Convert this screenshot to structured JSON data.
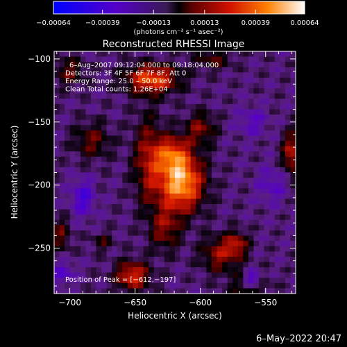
{
  "chart_data": {
    "type": "heatmap",
    "title": "Reconstructed RHESSI Image",
    "xlabel": "Heliocentric X (arcsec)",
    "ylabel": "Heliocentric Y (arcsec)",
    "xlim": [
      -712,
      -527
    ],
    "ylim": [
      -286,
      -94
    ],
    "x_ticks": [
      -700,
      -650,
      -600,
      -550
    ],
    "x_tick_labels": [
      "−700",
      "−650",
      "−600",
      "−550"
    ],
    "y_ticks": [
      -100,
      -150,
      -200,
      -250
    ],
    "y_tick_labels": [
      "−100",
      "−150",
      "−200",
      "−250"
    ],
    "colorbar": {
      "min": -0.00064,
      "max": 0.00064,
      "tick_values": [
        -0.00064,
        -0.00039,
        -0.00013,
        0.00013,
        0.00039,
        0.00064
      ],
      "tick_labels": [
        "−0.00064",
        "−0.00039",
        "−0.00013",
        "0.00013",
        "0.00039",
        "0.00064"
      ],
      "units": "(photons cm⁻² s⁻¹ asec⁻²)"
    },
    "annotations": [
      "6–Aug–2007 09:12:04.000 to 09:18:04.000",
      "Detectors: 3F 4F 5F 6F 7F 8F, Att 0",
      "Energy Range: 25.0 – 50.0 keV",
      "Clean     Total counts: 1.26E+04"
    ],
    "peak_label": "Position of Peak = [−612,−197]",
    "peak": [
      -612,
      -197
    ],
    "sources": [
      {
        "x": -615,
        "y": -198,
        "sx": 12,
        "sy": 16,
        "amp": 1.0
      },
      {
        "x": -622,
        "y": -175,
        "sx": 9,
        "sy": 10,
        "amp": 0.55
      },
      {
        "x": -640,
        "y": -180,
        "sx": 8,
        "sy": 25,
        "amp": 0.45
      },
      {
        "x": -637,
        "y": -116,
        "sx": 14,
        "sy": 8,
        "amp": 0.75
      },
      {
        "x": -627,
        "y": -235,
        "sx": 8,
        "sy": 12,
        "amp": 0.4
      },
      {
        "x": -600,
        "y": -155,
        "sx": 8,
        "sy": 9,
        "amp": 0.4
      },
      {
        "x": -652,
        "y": -272,
        "sx": 9,
        "sy": 8,
        "amp": 0.65
      },
      {
        "x": -585,
        "y": -255,
        "sx": 10,
        "sy": 10,
        "amp": 0.45
      },
      {
        "x": -572,
        "y": -247,
        "sx": 6,
        "sy": 7,
        "amp": 0.45
      },
      {
        "x": -562,
        "y": -280,
        "sx": 10,
        "sy": 8,
        "amp": 0.35
      },
      {
        "x": -530,
        "y": -175,
        "sx": 5,
        "sy": 12,
        "amp": 0.55
      },
      {
        "x": -683,
        "y": -165,
        "sx": 10,
        "sy": 10,
        "amp": 0.35
      },
      {
        "x": -700,
        "y": -110,
        "sx": 8,
        "sy": 8,
        "amp": 0.35
      },
      {
        "x": -707,
        "y": -240,
        "sx": 5,
        "sy": 9,
        "amp": 0.35
      },
      {
        "x": -675,
        "y": -245,
        "sx": 6,
        "sy": 5,
        "amp": 0.25
      },
      {
        "x": -590,
        "y": -100,
        "sx": 10,
        "sy": 6,
        "amp": 0.3
      },
      {
        "x": -560,
        "y": -275,
        "sx": 5,
        "sy": 5,
        "amp": -0.6
      },
      {
        "x": -690,
        "y": -210,
        "sx": 6,
        "sy": 10,
        "amp": -0.4
      },
      {
        "x": -560,
        "y": -150,
        "sx": 8,
        "sy": 8,
        "amp": -0.25
      },
      {
        "x": -545,
        "y": -200,
        "sx": 8,
        "sy": 10,
        "amp": -0.25
      },
      {
        "x": -705,
        "y": -270,
        "sx": 6,
        "sy": 6,
        "amp": -0.3
      }
    ]
  },
  "footer": {
    "date": "6–May–2022 20:47"
  }
}
